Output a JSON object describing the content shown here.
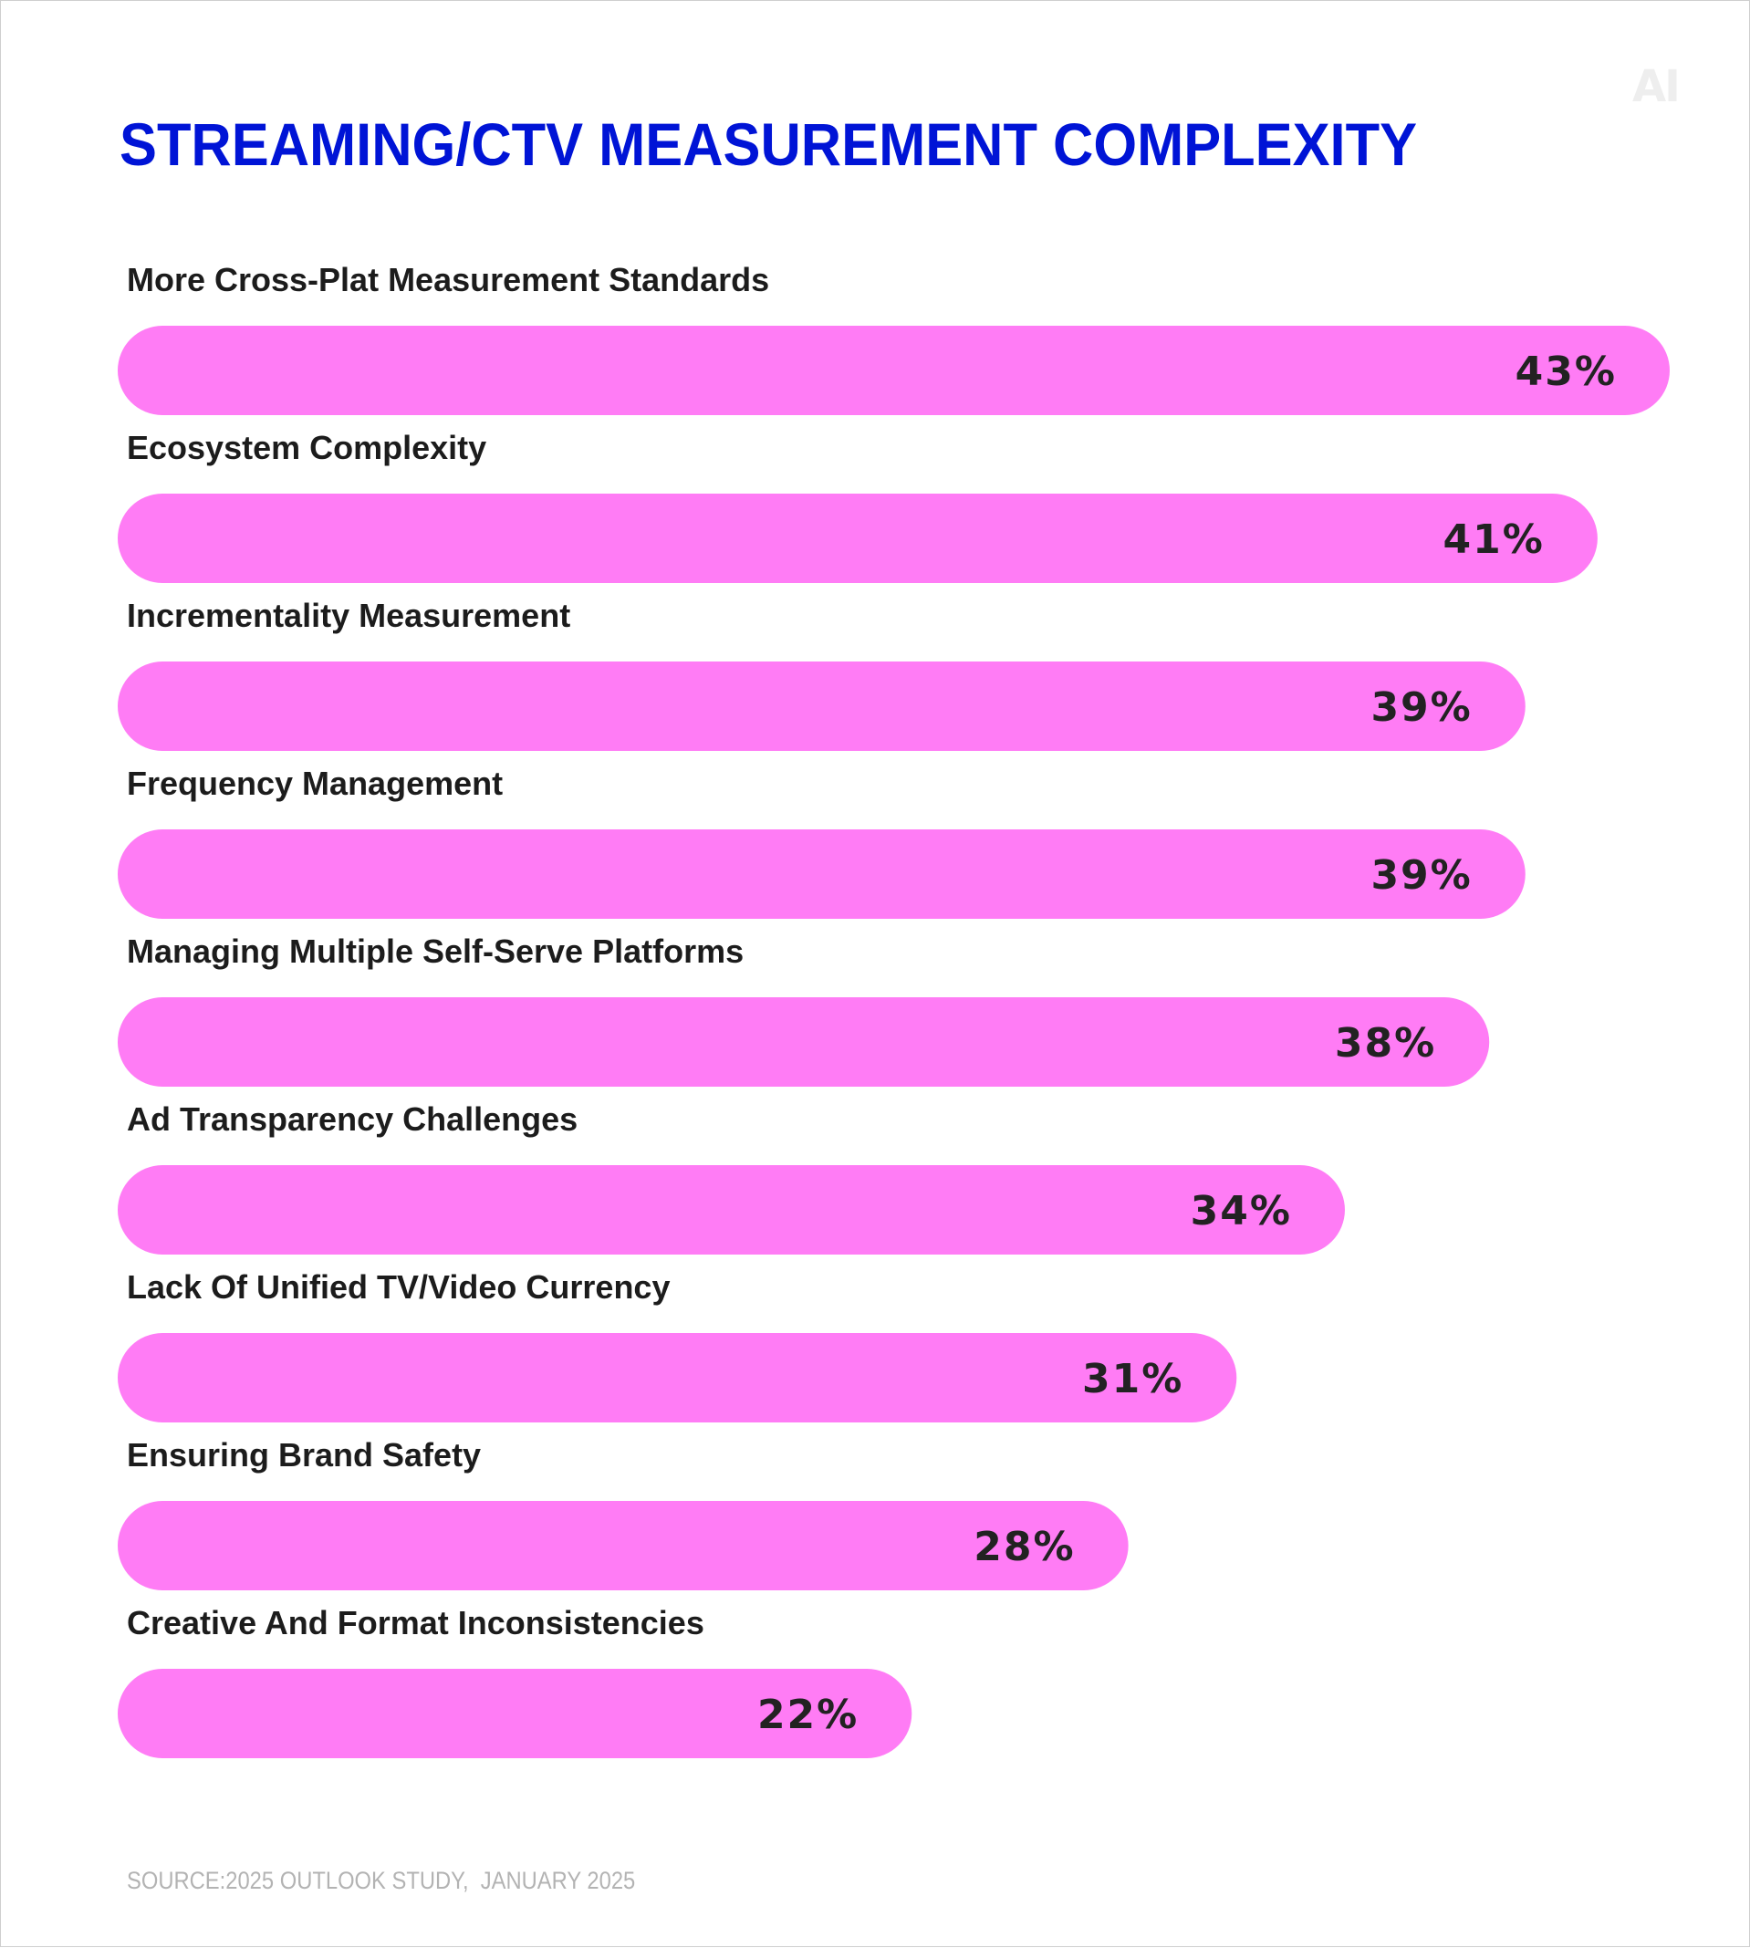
{
  "logo": "AI",
  "source": "SOURCE:2025 OUTLOOK STUDY,  JANUARY 2025",
  "chart_data": {
    "type": "bar",
    "orientation": "horizontal",
    "title": "STREAMING/CTV MEASUREMENT COMPLEXITY",
    "categories": [
      "More Cross-Plat Measurement Standards",
      "Ecosystem Complexity",
      "Incrementality Measurement",
      "Frequency Management",
      "Managing Multiple Self-Serve Platforms",
      "Ad Transparency Challenges",
      "Lack Of Unified TV/Video Currency",
      "Ensuring Brand Safety",
      "Creative And Format Inconsistencies"
    ],
    "values": [
      43,
      41,
      39,
      39,
      38,
      34,
      31,
      28,
      22
    ],
    "value_labels": [
      "43%",
      "41%",
      "39%",
      "39%",
      "38%",
      "34%",
      "31%",
      "28%",
      "22%"
    ],
    "unit": "%",
    "bar_color": "#ff7cf5",
    "title_color": "#0014d6",
    "grid": false,
    "legend": "none"
  }
}
